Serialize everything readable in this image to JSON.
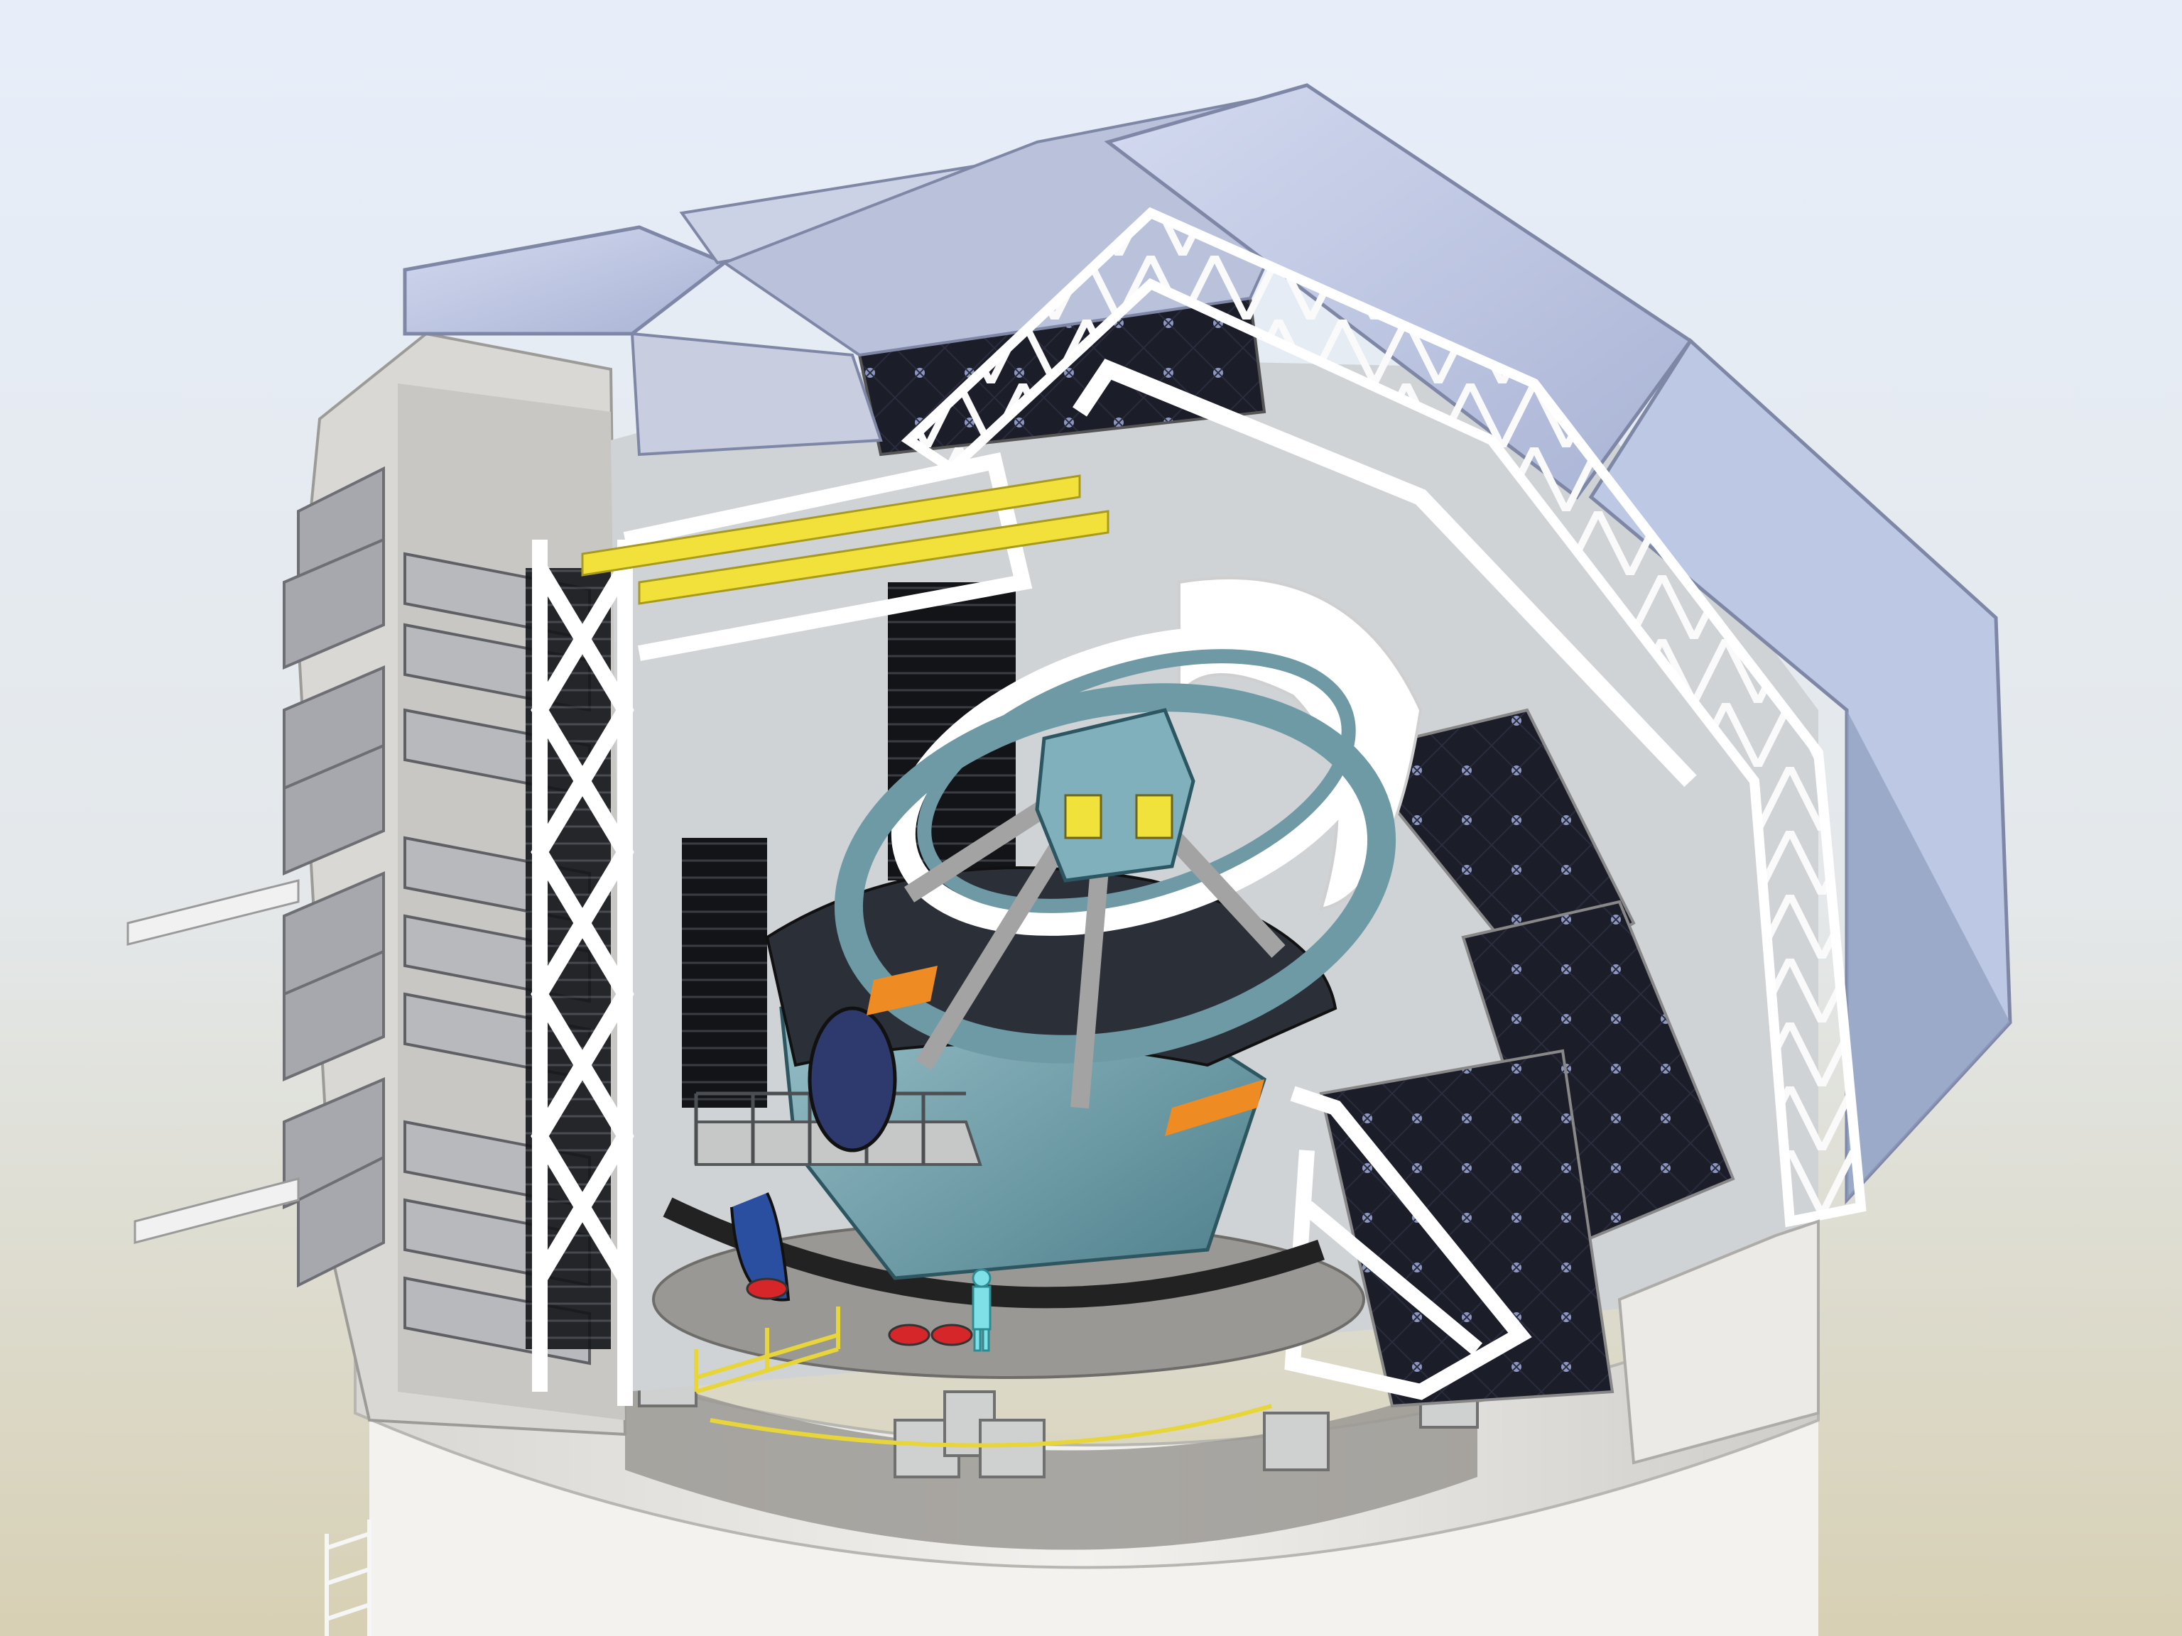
{
  "scene": {
    "subject": "telescope-observatory-cutaway",
    "colors": {
      "background_top": "#e6edf8",
      "background_bottom": "#d8d2b8",
      "roof_panel": "#c4cde8",
      "dome_wall": "#e8e6e2",
      "truss": "#f4f4f4",
      "telescope_body": "#7fa9b3",
      "telescope_dark": "#3f6e7a",
      "mirror_panel": "#1c1e2a",
      "mirror_dot": "#9aa3c8",
      "accent_yellow": "#f2e23c",
      "accent_orange": "#ee8b22",
      "accent_red": "#d6262a",
      "shadow": "#9a9892"
    }
  }
}
